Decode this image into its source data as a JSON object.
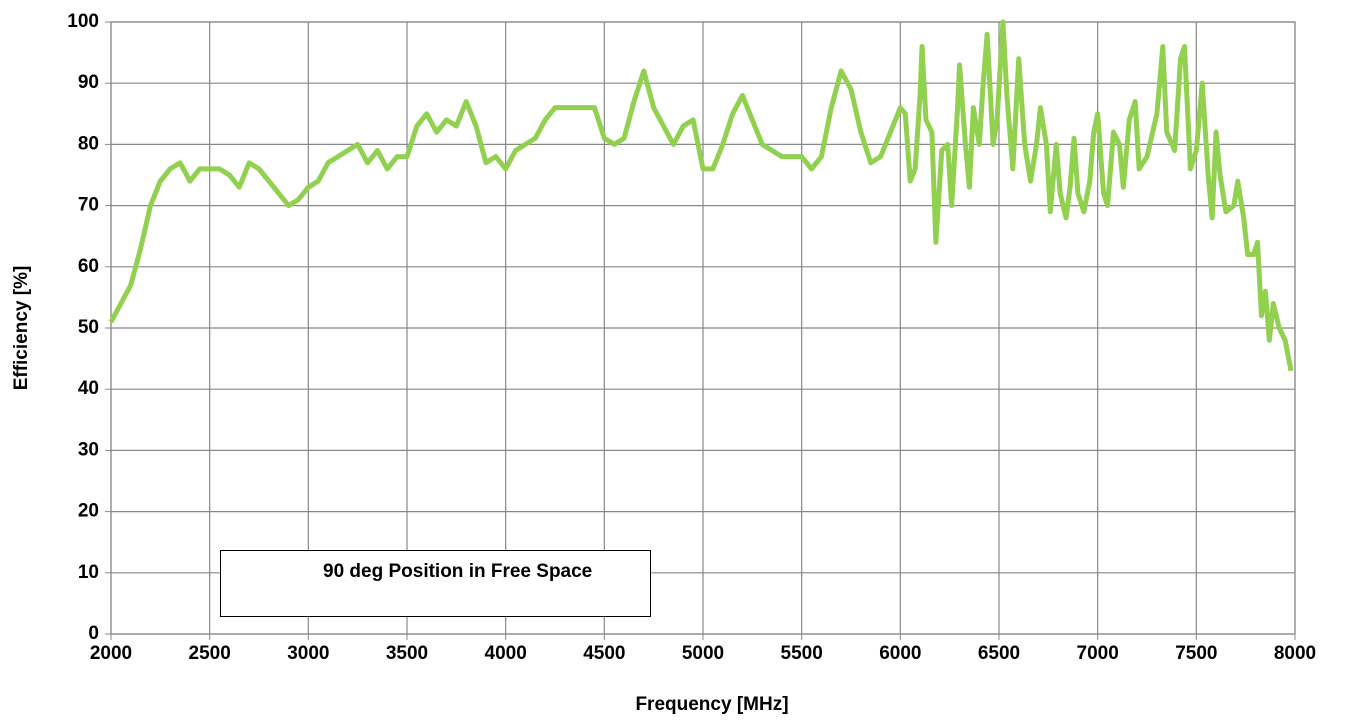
{
  "chart_data": {
    "type": "line",
    "xlabel": "Frequency [MHz]",
    "ylabel": "Efficiency [%]",
    "xlim": [
      2000,
      8000
    ],
    "xticks": [
      2000,
      2500,
      3000,
      3500,
      4000,
      4500,
      5000,
      5500,
      6000,
      6500,
      7000,
      7500,
      8000
    ],
    "ylim": [
      0,
      100
    ],
    "yticks": [
      0,
      10,
      20,
      30,
      40,
      50,
      60,
      70,
      80,
      90,
      100
    ],
    "grid": true,
    "legend": "lower left",
    "x": [
      2000,
      2050,
      2100,
      2150,
      2200,
      2250,
      2300,
      2350,
      2400,
      2450,
      2500,
      2550,
      2600,
      2650,
      2700,
      2750,
      2800,
      2850,
      2900,
      2950,
      3000,
      3050,
      3100,
      3150,
      3200,
      3250,
      3300,
      3350,
      3400,
      3450,
      3500,
      3550,
      3600,
      3650,
      3700,
      3750,
      3800,
      3850,
      3900,
      3950,
      4000,
      4050,
      4100,
      4150,
      4200,
      4250,
      4300,
      4350,
      4400,
      4450,
      4500,
      4550,
      4600,
      4650,
      4700,
      4750,
      4800,
      4850,
      4900,
      4950,
      5000,
      5050,
      5100,
      5150,
      5200,
      5250,
      5300,
      5350,
      5400,
      5450,
      5500,
      5550,
      5600,
      5650,
      5700,
      5750,
      5800,
      5850,
      5900,
      5950,
      6000,
      6025,
      6050,
      6075,
      6100,
      6110,
      6130,
      6160,
      6180,
      6210,
      6240,
      6260,
      6290,
      6300,
      6330,
      6350,
      6370,
      6400,
      6420,
      6440,
      6470,
      6490,
      6520,
      6540,
      6570,
      6600,
      6630,
      6660,
      6690,
      6710,
      6740,
      6760,
      6790,
      6810,
      6840,
      6860,
      6880,
      6900,
      6930,
      6960,
      6980,
      7000,
      7030,
      7050,
      7080,
      7110,
      7130,
      7160,
      7190,
      7210,
      7250,
      7300,
      7330,
      7350,
      7390,
      7420,
      7440,
      7470,
      7500,
      7530,
      7560,
      7580,
      7600,
      7620,
      7650,
      7690,
      7710,
      7740,
      7760,
      7790,
      7810,
      7830,
      7850,
      7870,
      7890,
      7920,
      7950,
      7980
    ],
    "series": [
      {
        "name": "90 deg Position in Free Space",
        "color": "#92d050",
        "values": [
          51,
          54,
          57,
          63,
          70,
          74,
          76,
          77,
          74,
          76,
          76,
          76,
          75,
          73,
          77,
          76,
          74,
          72,
          70,
          71,
          73,
          74,
          77,
          78,
          79,
          80,
          77,
          79,
          76,
          78,
          78,
          83,
          85,
          82,
          84,
          83,
          87,
          83,
          77,
          78,
          76,
          79,
          80,
          81,
          84,
          86,
          86,
          86,
          86,
          86,
          81,
          80,
          81,
          87,
          92,
          86,
          83,
          80,
          83,
          84,
          76,
          76,
          80,
          85,
          88,
          84,
          80,
          79,
          78,
          78,
          78,
          76,
          78,
          86,
          92,
          89,
          82,
          77,
          78,
          82,
          86,
          85,
          74,
          76,
          88,
          96,
          84,
          82,
          64,
          79,
          80,
          70,
          86,
          93,
          80,
          73,
          86,
          80,
          90,
          98,
          80,
          84,
          100,
          88,
          76,
          94,
          80,
          74,
          80,
          86,
          80,
          69,
          80,
          72,
          68,
          73,
          81,
          72,
          69,
          74,
          82,
          85,
          72,
          70,
          82,
          80,
          73,
          84,
          87,
          76,
          78,
          85,
          96,
          82,
          79,
          94,
          96,
          76,
          79,
          90,
          75,
          68,
          82,
          75,
          69,
          70,
          74,
          68,
          62,
          62,
          64,
          52,
          56,
          48,
          54,
          50,
          48,
          43
        ]
      }
    ]
  }
}
